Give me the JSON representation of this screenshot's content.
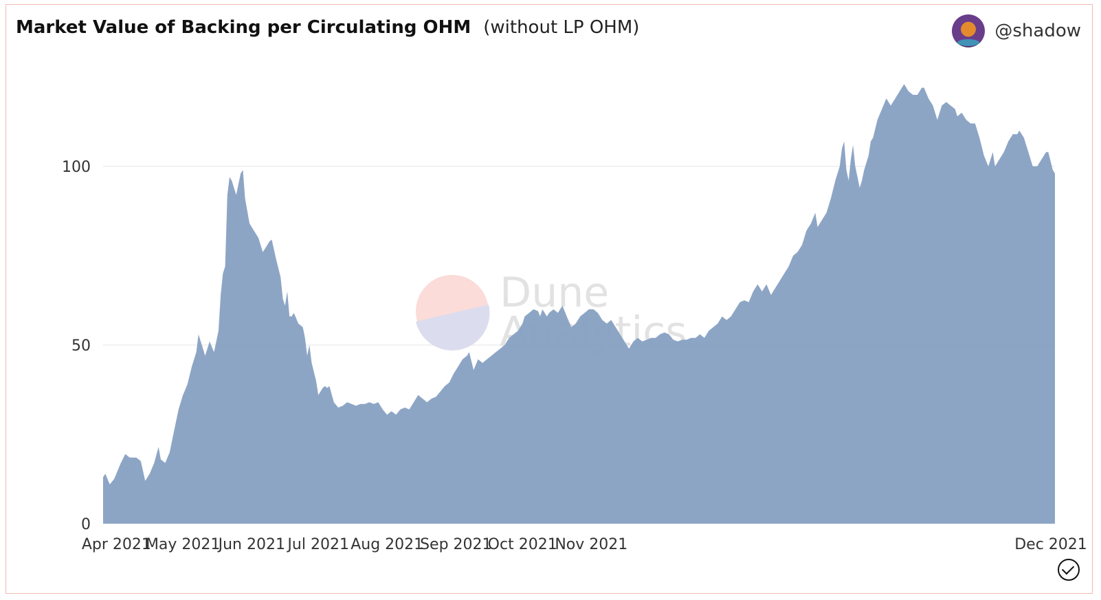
{
  "header": {
    "title": "Market Value of Backing per Circulating OHM",
    "subtitle": "(without LP OHM)",
    "author": "@shadow"
  },
  "watermark": {
    "line1": "Dune",
    "line2": "Analytics"
  },
  "colors": {
    "area": "#87a0c2",
    "grid": "#e6e6e6",
    "axis_text": "#333333"
  },
  "chart_data": {
    "type": "area",
    "title": "Market Value of Backing per Circulating OHM",
    "subtitle": "(without LP OHM)",
    "xlabel": "",
    "ylabel": "",
    "ylim": [
      0,
      120
    ],
    "y_ticks": [
      0,
      50,
      100
    ],
    "grid": true,
    "legend": "none",
    "x_tick_labels": [
      "Apr 2021",
      "May 2021",
      "Jun 2021",
      "Jul 2021",
      "Aug 2021",
      "Sep 2021",
      "Oct 2021",
      "Nov 2021",
      "Dec 2021"
    ],
    "series": [
      {
        "values": [
          [
            0,
            13
          ],
          [
            1,
            14
          ],
          [
            3,
            11
          ],
          [
            5,
            12.5
          ],
          [
            8,
            17
          ],
          [
            10,
            19.5
          ],
          [
            12,
            18.5
          ],
          [
            15,
            18.5
          ],
          [
            17,
            17.5
          ],
          [
            19,
            12
          ],
          [
            21,
            14
          ],
          [
            23,
            17
          ],
          [
            25,
            21.5
          ],
          [
            26,
            18
          ],
          [
            28,
            17
          ],
          [
            30,
            20
          ],
          [
            32,
            26
          ],
          [
            34,
            32
          ],
          [
            36,
            36
          ],
          [
            38,
            39
          ],
          [
            40,
            44
          ],
          [
            42,
            48
          ],
          [
            43,
            53
          ],
          [
            45,
            49
          ],
          [
            46,
            47
          ],
          [
            48,
            51
          ],
          [
            50,
            48
          ],
          [
            52,
            54
          ],
          [
            53,
            64
          ],
          [
            54,
            70
          ],
          [
            55,
            72
          ],
          [
            56,
            92
          ],
          [
            57,
            97
          ],
          [
            58,
            96
          ],
          [
            60,
            92
          ],
          [
            61,
            95
          ],
          [
            62,
            98
          ],
          [
            63,
            99
          ],
          [
            64,
            91
          ],
          [
            66,
            84
          ],
          [
            68,
            82
          ],
          [
            70,
            80
          ],
          [
            72,
            76
          ],
          [
            73,
            77
          ],
          [
            75,
            79
          ],
          [
            76,
            79.5
          ],
          [
            78,
            74
          ],
          [
            80,
            69
          ],
          [
            81,
            63
          ],
          [
            82,
            61
          ],
          [
            83,
            65
          ],
          [
            84,
            58
          ],
          [
            85,
            58
          ],
          [
            86,
            59
          ],
          [
            88,
            56
          ],
          [
            90,
            55
          ],
          [
            91,
            52
          ],
          [
            92,
            47
          ],
          [
            93,
            50
          ],
          [
            94,
            45
          ],
          [
            96,
            40
          ],
          [
            97,
            36
          ],
          [
            99,
            38
          ],
          [
            100,
            38.5
          ],
          [
            101,
            38
          ],
          [
            102,
            38.5
          ],
          [
            104,
            34
          ],
          [
            106,
            32.5
          ],
          [
            108,
            33
          ],
          [
            110,
            34
          ],
          [
            112,
            33.5
          ],
          [
            114,
            33
          ],
          [
            116,
            33.5
          ],
          [
            118,
            33.5
          ],
          [
            120,
            34
          ],
          [
            122,
            33.5
          ],
          [
            124,
            34
          ],
          [
            126,
            32
          ],
          [
            128,
            30.5
          ],
          [
            130,
            31.5
          ],
          [
            132,
            30.5
          ],
          [
            134,
            32
          ],
          [
            136,
            32.5
          ],
          [
            138,
            32
          ],
          [
            140,
            34
          ],
          [
            142,
            36
          ],
          [
            144,
            35
          ],
          [
            146,
            34
          ],
          [
            148,
            35
          ],
          [
            150,
            35.5
          ],
          [
            152,
            37
          ],
          [
            154,
            38.5
          ],
          [
            156,
            39.5
          ],
          [
            158,
            42
          ],
          [
            160,
            44
          ],
          [
            162,
            46
          ],
          [
            164,
            47
          ],
          [
            165,
            48
          ],
          [
            167,
            43
          ],
          [
            169,
            46
          ],
          [
            171,
            45
          ],
          [
            173,
            46
          ],
          [
            175,
            47
          ],
          [
            177,
            48
          ],
          [
            179,
            49
          ],
          [
            181,
            50
          ],
          [
            183,
            52
          ],
          [
            185,
            53
          ],
          [
            187,
            54
          ],
          [
            189,
            56
          ],
          [
            190,
            58
          ],
          [
            192,
            59
          ],
          [
            194,
            60
          ],
          [
            196,
            59.5
          ],
          [
            197,
            58
          ],
          [
            198,
            60
          ],
          [
            200,
            58
          ],
          [
            201,
            59
          ],
          [
            203,
            60
          ],
          [
            205,
            59
          ],
          [
            207,
            61
          ],
          [
            209,
            58
          ],
          [
            211,
            55
          ],
          [
            213,
            56
          ],
          [
            215,
            58
          ],
          [
            217,
            59
          ],
          [
            219,
            60
          ],
          [
            221,
            60
          ],
          [
            223,
            59
          ],
          [
            225,
            57
          ],
          [
            227,
            56
          ],
          [
            229,
            57
          ],
          [
            231,
            55
          ],
          [
            233,
            53
          ],
          [
            235,
            51
          ],
          [
            237,
            49
          ],
          [
            239,
            51
          ],
          [
            241,
            52
          ],
          [
            243,
            51
          ],
          [
            245,
            51.5
          ],
          [
            247,
            52
          ],
          [
            249,
            52
          ],
          [
            251,
            53
          ],
          [
            253,
            53.5
          ],
          [
            255,
            53
          ],
          [
            257,
            51.5
          ],
          [
            259,
            51
          ],
          [
            261,
            51.5
          ],
          [
            263,
            51.5
          ],
          [
            265,
            52
          ],
          [
            267,
            52
          ],
          [
            269,
            53
          ],
          [
            271,
            52
          ],
          [
            273,
            54
          ],
          [
            275,
            55
          ],
          [
            277,
            56
          ],
          [
            279,
            58
          ],
          [
            281,
            57
          ],
          [
            283,
            58
          ],
          [
            285,
            60
          ],
          [
            287,
            62
          ],
          [
            289,
            62.5
          ],
          [
            291,
            62
          ],
          [
            293,
            65
          ],
          [
            295,
            67
          ],
          [
            297,
            65
          ],
          [
            299,
            67
          ],
          [
            301,
            64
          ],
          [
            303,
            66
          ],
          [
            305,
            68
          ],
          [
            307,
            70
          ],
          [
            309,
            72
          ],
          [
            311,
            75
          ],
          [
            313,
            76
          ],
          [
            315,
            78
          ],
          [
            317,
            82
          ],
          [
            319,
            84
          ],
          [
            321,
            87
          ],
          [
            322,
            83
          ],
          [
            324,
            85
          ],
          [
            326,
            87
          ],
          [
            328,
            91
          ],
          [
            330,
            96
          ],
          [
            332,
            100
          ],
          [
            333,
            105
          ],
          [
            334,
            107
          ],
          [
            335,
            99
          ],
          [
            336,
            96
          ],
          [
            337,
            102
          ],
          [
            338,
            106
          ],
          [
            339,
            100
          ],
          [
            340,
            97
          ],
          [
            341,
            94
          ],
          [
            342,
            96
          ],
          [
            343,
            99
          ],
          [
            344,
            101
          ],
          [
            345,
            103
          ],
          [
            346,
            107
          ],
          [
            347,
            108
          ],
          [
            349,
            113
          ],
          [
            351,
            116
          ],
          [
            353,
            119
          ],
          [
            355,
            117
          ],
          [
            357,
            119
          ],
          [
            359,
            121
          ],
          [
            361,
            123
          ],
          [
            363,
            121
          ],
          [
            365,
            120
          ],
          [
            367,
            120
          ],
          [
            369,
            122
          ],
          [
            370,
            122
          ],
          [
            372,
            119
          ],
          [
            374,
            117
          ],
          [
            376,
            113
          ],
          [
            378,
            117
          ],
          [
            380,
            118
          ],
          [
            382,
            117
          ],
          [
            384,
            116
          ],
          [
            385,
            114
          ],
          [
            387,
            115
          ],
          [
            389,
            113
          ],
          [
            391,
            112
          ],
          [
            393,
            112
          ],
          [
            395,
            108
          ],
          [
            397,
            103
          ],
          [
            399,
            100
          ],
          [
            401,
            104
          ],
          [
            402,
            100
          ],
          [
            404,
            102
          ],
          [
            406,
            104
          ],
          [
            408,
            107
          ],
          [
            410,
            109
          ],
          [
            412,
            109
          ],
          [
            413,
            110
          ],
          [
            415,
            108
          ],
          [
            417,
            104
          ],
          [
            419,
            100
          ],
          [
            421,
            100
          ],
          [
            423,
            102
          ],
          [
            425,
            104
          ],
          [
            426,
            104
          ],
          [
            428,
            99
          ],
          [
            429,
            98
          ]
        ]
      }
    ]
  }
}
